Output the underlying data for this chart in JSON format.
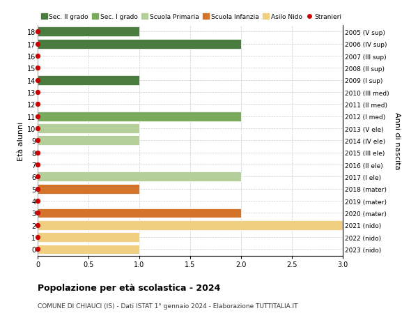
{
  "ages": [
    18,
    17,
    16,
    15,
    14,
    13,
    12,
    11,
    10,
    9,
    8,
    7,
    6,
    5,
    4,
    3,
    2,
    1,
    0
  ],
  "right_labels": [
    "2005 (V sup)",
    "2006 (IV sup)",
    "2007 (III sup)",
    "2008 (II sup)",
    "2009 (I sup)",
    "2010 (III med)",
    "2011 (II med)",
    "2012 (I med)",
    "2013 (V ele)",
    "2014 (IV ele)",
    "2015 (III ele)",
    "2016 (II ele)",
    "2017 (I ele)",
    "2018 (mater)",
    "2019 (mater)",
    "2020 (mater)",
    "2021 (nido)",
    "2022 (nido)",
    "2023 (nido)"
  ],
  "bars": [
    {
      "age": 18,
      "value": 1,
      "color": "#4a7c3f"
    },
    {
      "age": 17,
      "value": 2,
      "color": "#4a7c3f"
    },
    {
      "age": 16,
      "value": 0,
      "color": "#4a7c3f"
    },
    {
      "age": 15,
      "value": 0,
      "color": "#4a7c3f"
    },
    {
      "age": 14,
      "value": 1,
      "color": "#4a7c3f"
    },
    {
      "age": 13,
      "value": 0,
      "color": "#7aab5c"
    },
    {
      "age": 12,
      "value": 0,
      "color": "#7aab5c"
    },
    {
      "age": 11,
      "value": 2,
      "color": "#7aab5c"
    },
    {
      "age": 10,
      "value": 1,
      "color": "#b5cf9b"
    },
    {
      "age": 9,
      "value": 1,
      "color": "#b5cf9b"
    },
    {
      "age": 8,
      "value": 0,
      "color": "#b5cf9b"
    },
    {
      "age": 7,
      "value": 0,
      "color": "#b5cf9b"
    },
    {
      "age": 6,
      "value": 2,
      "color": "#b5cf9b"
    },
    {
      "age": 5,
      "value": 1,
      "color": "#d4732a"
    },
    {
      "age": 4,
      "value": 0,
      "color": "#d4732a"
    },
    {
      "age": 3,
      "value": 2,
      "color": "#d4732a"
    },
    {
      "age": 2,
      "value": 3,
      "color": "#f0d080"
    },
    {
      "age": 1,
      "value": 1,
      "color": "#f0d080"
    },
    {
      "age": 0,
      "value": 1,
      "color": "#f0d080"
    }
  ],
  "stranieri_ages": [
    18,
    17,
    16,
    15,
    14,
    13,
    12,
    11,
    10,
    9,
    8,
    7,
    6,
    5,
    4,
    3,
    2,
    1,
    0
  ],
  "xlim": [
    0,
    3.0
  ],
  "xticks": [
    0,
    0.5,
    1.0,
    1.5,
    2.0,
    2.5,
    3.0
  ],
  "ylim_bottom": -0.55,
  "ylim_top": 18.55,
  "ylabel_left": "Età alunni",
  "ylabel_right": "Anni di nascita",
  "title": "Popolazione per età scolastica - 2024",
  "subtitle": "COMUNE DI CHIAUCI (IS) - Dati ISTAT 1° gennaio 2024 - Elaborazione TUTTITALIA.IT",
  "legend_entries": [
    {
      "label": "Sec. II grado",
      "color": "#4a7c3f",
      "type": "patch"
    },
    {
      "label": "Sec. I grado",
      "color": "#7aab5c",
      "type": "patch"
    },
    {
      "label": "Scuola Primaria",
      "color": "#b5cf9b",
      "type": "patch"
    },
    {
      "label": "Scuola Infanzia",
      "color": "#d4732a",
      "type": "patch"
    },
    {
      "label": "Asilo Nido",
      "color": "#f0d080",
      "type": "patch"
    },
    {
      "label": "Stranieri",
      "color": "#cc0000",
      "type": "dot"
    }
  ],
  "bg_color": "#ffffff",
  "grid_color": "#cccccc",
  "bar_height": 0.8,
  "dot_color": "#cc0000",
  "dot_size": 18
}
